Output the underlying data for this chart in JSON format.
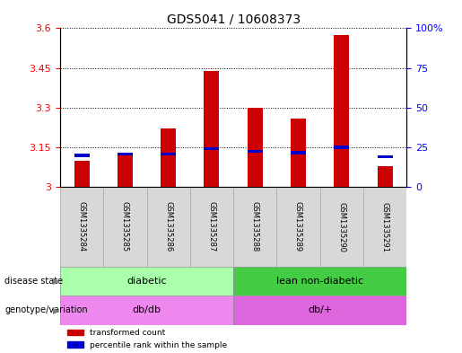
{
  "title": "GDS5041 / 10608373",
  "samples": [
    "GSM1335284",
    "GSM1335285",
    "GSM1335286",
    "GSM1335287",
    "GSM1335288",
    "GSM1335289",
    "GSM1335290",
    "GSM1335291"
  ],
  "transformed_count": [
    3.1,
    3.12,
    3.22,
    3.44,
    3.3,
    3.26,
    3.575,
    3.08
  ],
  "percentile_rank": [
    3.12,
    3.125,
    3.125,
    3.145,
    3.135,
    3.13,
    3.15,
    3.115
  ],
  "bar_bottom": 3.0,
  "ylim_left": [
    3.0,
    3.6
  ],
  "ylim_right": [
    0,
    100
  ],
  "yticks_left": [
    3.0,
    3.15,
    3.3,
    3.45,
    3.6
  ],
  "ytick_labels_left": [
    "3",
    "3.15",
    "3.3",
    "3.45",
    "3.6"
  ],
  "yticks_right": [
    0,
    25,
    50,
    75,
    100
  ],
  "ytick_labels_right": [
    "0",
    "25",
    "50",
    "75",
    "100%"
  ],
  "bar_color": "#cc0000",
  "percentile_color": "#0000cc",
  "disease_state_groups": [
    {
      "label": "diabetic",
      "start": 0,
      "end": 4,
      "color": "#aaffaa"
    },
    {
      "label": "lean non-diabetic",
      "start": 4,
      "end": 8,
      "color": "#44cc44"
    }
  ],
  "genotype_groups": [
    {
      "label": "db/db",
      "start": 0,
      "end": 4,
      "color": "#ee88ee"
    },
    {
      "label": "db/+",
      "start": 4,
      "end": 8,
      "color": "#dd66dd"
    }
  ],
  "left_label_disease": "disease state",
  "left_label_genotype": "genotype/variation",
  "legend_items": [
    {
      "label": "transformed count",
      "color": "#cc0000"
    },
    {
      "label": "percentile rank within the sample",
      "color": "#0000cc"
    }
  ],
  "background_color": "#e8e8e8",
  "plot_bg": "#ffffff"
}
